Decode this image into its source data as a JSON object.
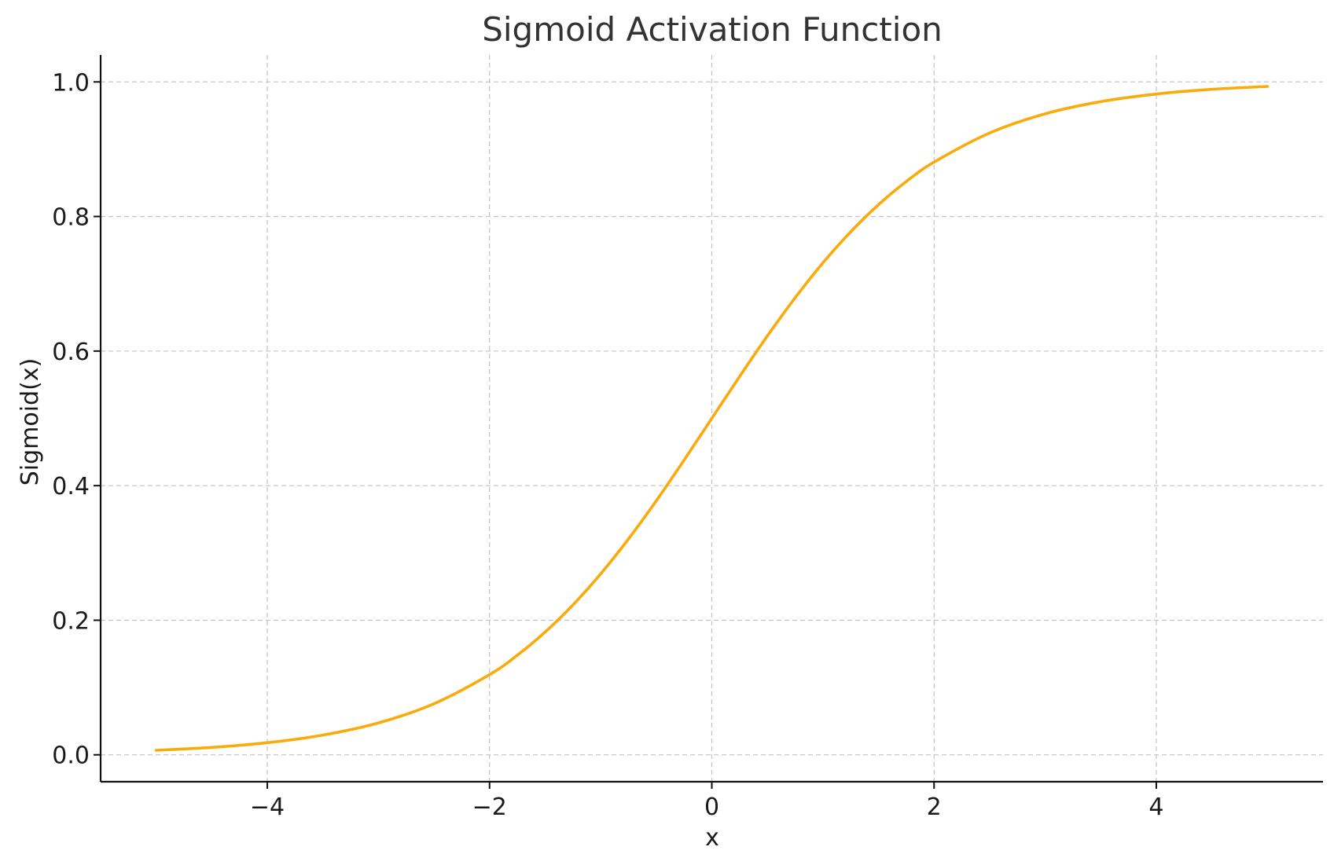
{
  "chart_data": {
    "type": "line",
    "title": "Sigmoid Activation Function",
    "xlabel": "x",
    "ylabel": "Sigmoid(x)",
    "xlim": [
      -5.5,
      5.5
    ],
    "ylim": [
      -0.04,
      1.04
    ],
    "x_ticks": [
      -4,
      -2,
      0,
      2,
      4
    ],
    "x_tick_labels": [
      "−4",
      "−2",
      "0",
      "2",
      "4"
    ],
    "y_ticks": [
      0.0,
      0.2,
      0.4,
      0.6,
      0.8,
      1.0
    ],
    "y_tick_labels": [
      "0.0",
      "0.2",
      "0.4",
      "0.6",
      "0.8",
      "1.0"
    ],
    "grid": true,
    "line_color": "#FAAB0C",
    "series": [
      {
        "x": [
          -5.0,
          -4.5,
          -4.0,
          -3.5,
          -3.0,
          -2.5,
          -2.0,
          -1.75,
          -1.5,
          -1.25,
          -1.0,
          -0.75,
          -0.5,
          -0.25,
          0.0,
          0.25,
          0.5,
          0.75,
          1.0,
          1.25,
          1.5,
          1.75,
          2.0,
          2.5,
          3.0,
          3.5,
          4.0,
          4.5,
          5.0
        ],
        "y": [
          0.0067,
          0.011,
          0.018,
          0.0293,
          0.0474,
          0.0759,
          0.1192,
          0.148,
          0.1824,
          0.2227,
          0.2689,
          0.3208,
          0.3775,
          0.4378,
          0.5,
          0.5622,
          0.6225,
          0.6792,
          0.7311,
          0.7773,
          0.8176,
          0.852,
          0.8808,
          0.9241,
          0.9526,
          0.9707,
          0.982,
          0.989,
          0.9933
        ]
      }
    ]
  }
}
